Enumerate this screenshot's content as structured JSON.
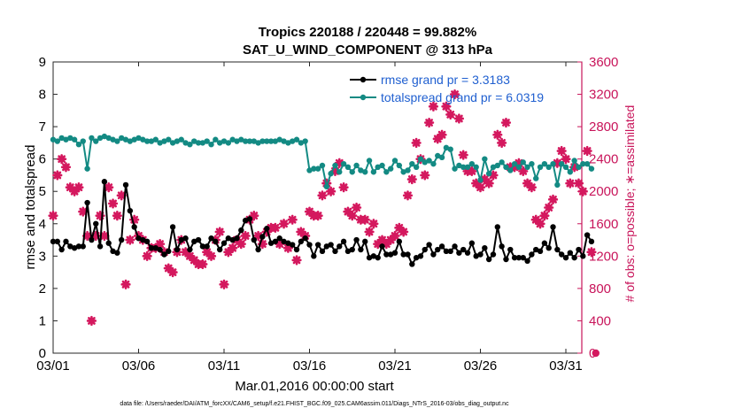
{
  "chart_data": {
    "type": "line",
    "title_line1": "Tropics 220188 / 220448 = 99.882%",
    "title_line2": "SAT_U_WIND_COMPONENT @ 313 hPa",
    "xlabel": "Mar.01,2016 00:00:00 start",
    "ylabel": "rmse and totalspread",
    "y2label": "# of obs: o=possible; ∗=assimilated",
    "xlim": [
      0,
      31.5
    ],
    "ylim": [
      0,
      9
    ],
    "y2lim": [
      0,
      3600
    ],
    "xticks": [
      0,
      5,
      10,
      15,
      20,
      25,
      30
    ],
    "xticklabels": [
      "03/01",
      "03/06",
      "03/11",
      "03/16",
      "03/21",
      "03/26",
      "03/31"
    ],
    "yticks": [
      0,
      1,
      2,
      3,
      4,
      5,
      6,
      7,
      8,
      9
    ],
    "y2ticks": [
      0,
      400,
      800,
      1200,
      1600,
      2000,
      2400,
      2800,
      3200,
      3600
    ],
    "colors": {
      "rmse": "#000000",
      "spread": "#138a83",
      "obs": "#d4185e",
      "right_axis": "#c8145a",
      "legend_text": "#1f5fd0"
    },
    "legend": [
      {
        "label": "rmse grand pr = 3.3183",
        "series": "rmse"
      },
      {
        "label": "totalspread grand pr = 6.0319",
        "series": "spread"
      }
    ],
    "series": [
      {
        "name": "rmse",
        "axis": "left",
        "x": [
          0.0,
          0.25,
          0.5,
          0.75,
          1.0,
          1.25,
          1.5,
          1.75,
          2.0,
          2.25,
          2.5,
          2.75,
          3.0,
          3.25,
          3.5,
          3.75,
          4.0,
          4.25,
          4.5,
          4.75,
          5.0,
          5.25,
          5.5,
          5.75,
          6.0,
          6.25,
          6.5,
          6.75,
          7.0,
          7.25,
          7.5,
          7.75,
          8.0,
          8.25,
          8.5,
          8.75,
          9.0,
          9.25,
          9.5,
          9.75,
          10.0,
          10.25,
          10.5,
          10.75,
          11.0,
          11.25,
          11.5,
          11.75,
          12.0,
          12.25,
          12.5,
          12.75,
          13.0,
          13.25,
          13.5,
          13.75,
          14.0,
          14.25,
          14.5,
          14.75,
          15.0,
          15.25,
          15.5,
          15.75,
          16.0,
          16.25,
          16.5,
          16.75,
          17.0,
          17.25,
          17.5,
          17.75,
          18.0,
          18.25,
          18.5,
          18.75,
          19.0,
          19.25,
          19.5,
          19.75,
          20.0,
          20.25,
          20.5,
          20.75,
          21.0,
          21.25,
          21.5,
          21.75,
          22.0,
          22.25,
          22.5,
          22.75,
          23.0,
          23.25,
          23.5,
          23.75,
          24.0,
          24.25,
          24.5,
          24.75,
          25.0,
          25.25,
          25.5,
          25.75,
          26.0,
          26.25,
          26.5,
          26.75,
          27.0,
          27.25,
          27.5,
          27.75,
          28.0,
          28.25,
          28.5,
          28.75,
          29.0,
          29.25,
          29.5,
          29.75,
          30.0,
          30.25,
          30.5,
          30.75,
          31.0
        ],
        "values": [
          3.45,
          3.45,
          3.2,
          3.45,
          3.3,
          3.25,
          3.3,
          3.3,
          4.65,
          3.5,
          4.0,
          3.3,
          5.3,
          3.4,
          3.15,
          3.1,
          3.5,
          5.2,
          4.4,
          3.9,
          3.55,
          3.5,
          3.45,
          3.25,
          3.25,
          3.2,
          3.05,
          3.15,
          3.9,
          3.2,
          3.5,
          3.55,
          3.2,
          3.45,
          3.5,
          3.3,
          3.3,
          3.55,
          3.45,
          3.2,
          3.4,
          3.55,
          3.5,
          3.55,
          3.8,
          4.1,
          4.15,
          3.5,
          3.2,
          3.6,
          3.85,
          3.4,
          3.45,
          3.55,
          3.45,
          3.4,
          3.35,
          3.2,
          3.45,
          3.55,
          3.35,
          3.0,
          3.35,
          3.15,
          3.3,
          3.35,
          3.15,
          3.3,
          3.45,
          3.15,
          3.2,
          3.5,
          3.2,
          3.45,
          2.95,
          3.0,
          2.95,
          3.3,
          3.05,
          3.05,
          3.1,
          3.45,
          3.05,
          3.05,
          2.75,
          2.95,
          3.0,
          3.2,
          3.35,
          3.05,
          3.2,
          3.3,
          3.15,
          3.15,
          3.3,
          3.1,
          3.2,
          3.1,
          3.4,
          3.0,
          3.05,
          3.25,
          2.9,
          3.05,
          3.9,
          3.3,
          2.9,
          3.2,
          2.95,
          2.95,
          2.95,
          2.85,
          3.05,
          3.2,
          3.15,
          3.4,
          3.25,
          3.9,
          3.2,
          3.05,
          2.95,
          3.1,
          2.95,
          3.2,
          3.0
        ],
        "tail": [
          [
            31.25,
            3.65
          ],
          [
            31.5,
            3.45
          ]
        ]
      },
      {
        "name": "spread",
        "axis": "left",
        "x": [
          0.0,
          0.25,
          0.5,
          0.75,
          1.0,
          1.25,
          1.5,
          1.75,
          2.0,
          2.25,
          2.5,
          2.75,
          3.0,
          3.25,
          3.5,
          3.75,
          4.0,
          4.25,
          4.5,
          4.75,
          5.0,
          5.25,
          5.5,
          5.75,
          6.0,
          6.25,
          6.5,
          6.75,
          7.0,
          7.25,
          7.5,
          7.75,
          8.0,
          8.25,
          8.5,
          8.75,
          9.0,
          9.25,
          9.5,
          9.75,
          10.0,
          10.25,
          10.5,
          10.75,
          11.0,
          11.25,
          11.5,
          11.75,
          12.0,
          12.25,
          12.5,
          12.75,
          13.0,
          13.25,
          13.5,
          13.75,
          14.0,
          14.25,
          14.5,
          14.75,
          15.0,
          15.25,
          15.5,
          15.75,
          16.0,
          16.25,
          16.5,
          16.75,
          17.0,
          17.25,
          17.5,
          17.75,
          18.0,
          18.25,
          18.5,
          18.75,
          19.0,
          19.25,
          19.5,
          19.75,
          20.0,
          20.25,
          20.5,
          20.75,
          21.0,
          21.25,
          21.5,
          21.75,
          22.0,
          22.25,
          22.5,
          22.75,
          23.0,
          23.25,
          23.5,
          23.75,
          24.0,
          24.25,
          24.5,
          24.75,
          25.0,
          25.25,
          25.5,
          25.75,
          26.0,
          26.25,
          26.5,
          26.75,
          27.0,
          27.25,
          27.5,
          27.75,
          28.0,
          28.25,
          28.5,
          28.75,
          29.0,
          29.25,
          29.5,
          29.75,
          30.0,
          30.25,
          30.5,
          30.75,
          31.0
        ],
        "values": [
          6.6,
          6.55,
          6.65,
          6.6,
          6.65,
          6.6,
          6.45,
          6.55,
          5.7,
          6.65,
          6.55,
          6.65,
          6.7,
          6.65,
          6.6,
          6.55,
          6.65,
          6.6,
          6.55,
          6.6,
          6.65,
          6.6,
          6.55,
          6.55,
          6.6,
          6.5,
          6.55,
          6.6,
          6.5,
          6.55,
          6.6,
          6.5,
          6.45,
          6.55,
          6.5,
          6.5,
          6.55,
          6.45,
          6.6,
          6.5,
          6.55,
          6.5,
          6.6,
          6.55,
          6.6,
          6.55,
          6.55,
          6.55,
          6.5,
          6.55,
          6.55,
          6.55,
          6.55,
          6.6,
          6.55,
          6.5,
          6.55,
          6.6,
          6.5,
          6.55,
          5.65,
          5.7,
          5.7,
          5.8,
          5.15,
          5.55,
          5.8,
          5.6,
          5.85,
          5.75,
          5.6,
          5.8,
          5.65,
          5.6,
          5.95,
          5.6,
          5.75,
          5.8,
          5.6,
          5.7,
          5.95,
          5.8,
          5.6,
          5.65,
          5.85,
          5.75,
          6.0,
          5.9,
          5.95,
          5.85,
          6.1,
          6.05,
          6.35,
          6.3,
          5.7,
          5.8,
          5.75,
          5.75,
          5.85,
          5.75,
          5.35,
          6.0,
          5.55,
          5.75,
          5.8,
          5.9,
          5.75,
          5.65,
          5.85,
          5.75,
          5.9,
          5.75,
          5.85,
          5.4,
          5.75,
          5.85,
          5.75,
          5.85,
          5.2,
          5.85,
          5.75,
          5.6,
          5.95,
          5.75,
          5.85
        ],
        "tail": [
          [
            31.25,
            5.85
          ],
          [
            31.5,
            5.7
          ]
        ]
      },
      {
        "name": "obs_assimilated",
        "axis": "right",
        "marker": "star",
        "x": [
          0.0,
          0.25,
          0.5,
          0.75,
          1.0,
          1.25,
          1.5,
          1.75,
          2.0,
          2.25,
          2.5,
          2.75,
          3.0,
          3.25,
          3.5,
          3.75,
          4.0,
          4.25,
          4.5,
          4.75,
          5.0,
          5.25,
          5.5,
          5.75,
          6.0,
          6.25,
          6.5,
          6.75,
          7.0,
          7.25,
          7.5,
          7.75,
          8.0,
          8.25,
          8.5,
          8.75,
          9.0,
          9.25,
          9.5,
          9.75,
          10.0,
          10.25,
          10.5,
          10.75,
          11.0,
          11.25,
          11.5,
          11.75,
          12.0,
          12.25,
          12.5,
          12.75,
          13.0,
          13.25,
          13.5,
          13.75,
          14.0,
          14.25,
          14.5,
          14.75,
          15.0,
          15.25,
          15.5,
          15.75,
          16.0,
          16.25,
          16.5,
          16.75,
          17.0,
          17.25,
          17.5,
          17.75,
          18.0,
          18.25,
          18.5,
          18.75,
          19.0,
          19.25,
          19.5,
          19.75,
          20.0,
          20.25,
          20.5,
          20.75,
          21.0,
          21.25,
          21.5,
          21.75,
          22.0,
          22.25,
          22.5,
          22.75,
          23.0,
          23.25,
          23.5,
          23.75,
          24.0,
          24.25,
          24.5,
          24.75,
          25.0,
          25.25,
          25.5,
          25.75,
          26.0,
          26.25,
          26.5,
          26.75,
          27.0,
          27.25,
          27.5,
          27.75,
          28.0,
          28.25,
          28.5,
          28.75,
          29.0,
          29.25,
          29.5,
          29.75,
          30.0,
          30.25,
          30.5,
          30.75,
          31.0,
          31.25
        ],
        "values": [
          1700,
          2200,
          2400,
          2300,
          2050,
          2000,
          2050,
          1750,
          1450,
          400,
          1450,
          1700,
          1450,
          2050,
          1850,
          1700,
          1950,
          850,
          1400,
          1650,
          1450,
          1400,
          1200,
          1300,
          1300,
          1350,
          1250,
          1050,
          1000,
          1250,
          1400,
          1250,
          1200,
          1150,
          1100,
          1100,
          1250,
          1200,
          1400,
          1500,
          850,
          1250,
          1300,
          1400,
          1350,
          1450,
          1650,
          1700,
          1450,
          1350,
          1500,
          1550,
          1550,
          1350,
          1600,
          1300,
          1650,
          1150,
          1500,
          1450,
          1750,
          1700,
          1700,
          1950,
          2100,
          2000,
          2250,
          2350,
          2050,
          1750,
          1700,
          1800,
          1650,
          1650,
          1500,
          1600,
          1350,
          1400,
          1350,
          1400,
          1450,
          1550,
          1500,
          1950,
          2150,
          2600,
          2400,
          2200,
          2850,
          3050,
          2650,
          2700,
          3050,
          2950,
          3200,
          2900,
          2450,
          2250,
          2250,
          2100,
          2050,
          2150,
          2100,
          2200,
          2700,
          2600,
          2850,
          2300,
          2300,
          2350,
          2250,
          2100,
          2050,
          1650,
          1600,
          1700,
          1800,
          1900,
          2350,
          2500,
          2400,
          2100,
          2300,
          2100,
          2000,
          2500
        ],
        "tail": [
          [
            31.5,
            1250
          ]
        ]
      },
      {
        "name": "obs_possible",
        "axis": "right",
        "marker": "circle",
        "x": [
          31.75
        ],
        "values": [
          0
        ]
      }
    ],
    "footer": "data file: /Users/raeder/DAI/ATM_forcXX/CAM6_setup/f.e21.FHIST_BGC.f09_025.CAM6assim.011/Diags_NTrS_2016-03/obs_diag_output.nc"
  }
}
